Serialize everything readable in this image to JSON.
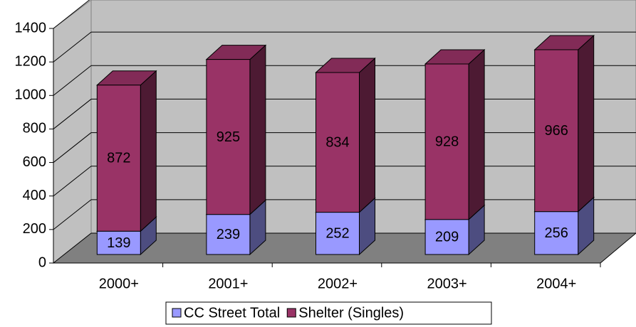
{
  "chart_data": {
    "type": "bar",
    "stacked": true,
    "categories": [
      "2000+",
      "2001+",
      "2002+",
      "2003+",
      "2004+"
    ],
    "series": [
      {
        "name": "CC Street Total",
        "color": "#9999ff",
        "values": [
          139,
          239,
          252,
          209,
          256
        ]
      },
      {
        "name": "Shelter (Singles)",
        "color": "#993366",
        "values": [
          872,
          925,
          834,
          928,
          966
        ]
      }
    ],
    "ylim": [
      0,
      1400
    ],
    "yticks": [
      0,
      200,
      400,
      600,
      800,
      1000,
      1200,
      1400
    ],
    "grid": true
  }
}
